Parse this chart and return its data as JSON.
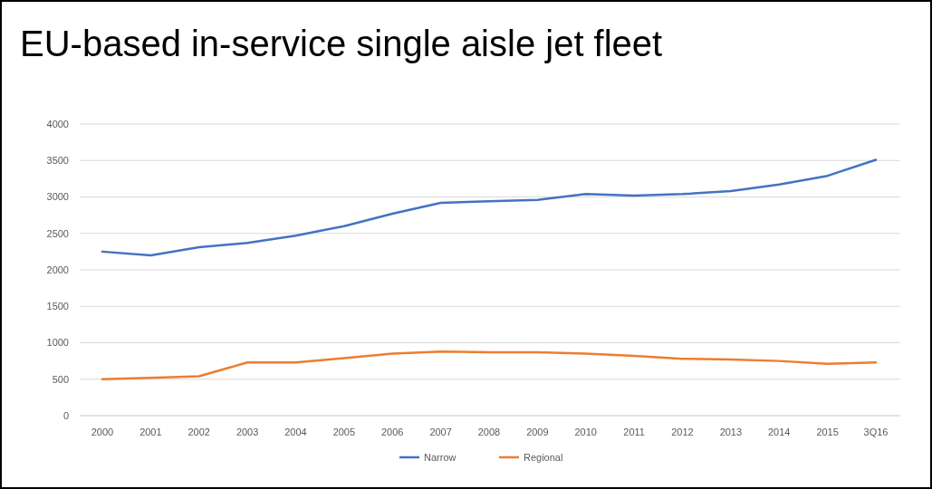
{
  "chart_data": {
    "type": "line",
    "title": "EU-based in-service single aisle jet fleet",
    "categories": [
      "2000",
      "2001",
      "2002",
      "2003",
      "2004",
      "2005",
      "2006",
      "2007",
      "2008",
      "2009",
      "2010",
      "2011",
      "2012",
      "2013",
      "2014",
      "2015",
      "3Q16"
    ],
    "series": [
      {
        "name": "Narrow",
        "color": "#4472c4",
        "values": [
          2250,
          2200,
          2310,
          2370,
          2470,
          2600,
          2770,
          2920,
          2940,
          2960,
          3040,
          3020,
          3040,
          3080,
          3170,
          3290,
          3510
        ]
      },
      {
        "name": "Regional",
        "color": "#ed7d31",
        "values": [
          500,
          520,
          540,
          730,
          730,
          790,
          850,
          880,
          870,
          870,
          850,
          820,
          780,
          770,
          750,
          710,
          730
        ]
      }
    ],
    "ylim": [
      0,
      4000
    ],
    "yticks": [
      0,
      500,
      1000,
      1500,
      2000,
      2500,
      3000,
      3500,
      4000
    ],
    "grid": "y",
    "legend": "bottom",
    "marker": "none",
    "line_style": "solid"
  }
}
